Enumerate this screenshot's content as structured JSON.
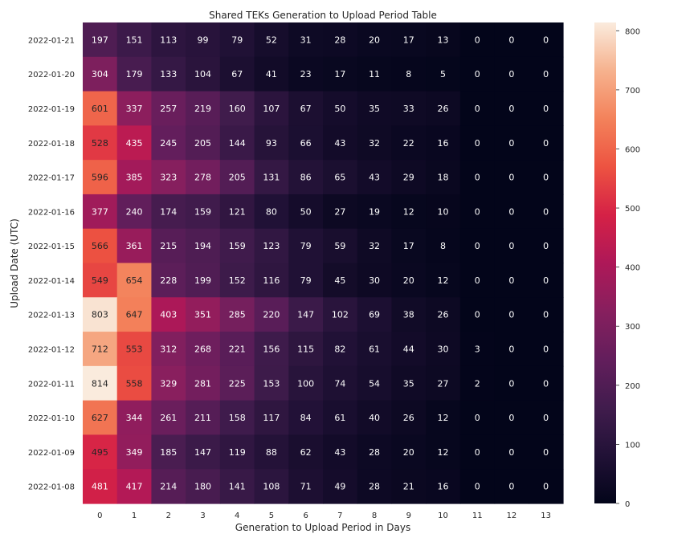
{
  "chart_data": {
    "type": "heatmap",
    "title": "Shared TEKs Generation to Upload Period Table",
    "xlabel": "Generation to Upload Period in Days",
    "ylabel": "Upload Date (UTC)",
    "x": [
      "0",
      "1",
      "2",
      "3",
      "4",
      "5",
      "6",
      "7",
      "8",
      "9",
      "10",
      "11",
      "12",
      "13"
    ],
    "y": [
      "2022-01-21",
      "2022-01-20",
      "2022-01-19",
      "2022-01-18",
      "2022-01-17",
      "2022-01-16",
      "2022-01-15",
      "2022-01-14",
      "2022-01-13",
      "2022-01-12",
      "2022-01-11",
      "2022-01-10",
      "2022-01-09",
      "2022-01-08"
    ],
    "values": [
      [
        197,
        151,
        113,
        99,
        79,
        52,
        31,
        28,
        20,
        17,
        13,
        0,
        0,
        0
      ],
      [
        304,
        179,
        133,
        104,
        67,
        41,
        23,
        17,
        11,
        8,
        5,
        0,
        0,
        0
      ],
      [
        601,
        337,
        257,
        219,
        160,
        107,
        67,
        50,
        35,
        33,
        26,
        0,
        0,
        0
      ],
      [
        528,
        435,
        245,
        205,
        144,
        93,
        66,
        43,
        32,
        22,
        16,
        0,
        0,
        0
      ],
      [
        596,
        385,
        323,
        278,
        205,
        131,
        86,
        65,
        43,
        29,
        18,
        0,
        0,
        0
      ],
      [
        377,
        240,
        174,
        159,
        121,
        80,
        50,
        27,
        19,
        12,
        10,
        0,
        0,
        0
      ],
      [
        566,
        361,
        215,
        194,
        159,
        123,
        79,
        59,
        32,
        17,
        8,
        0,
        0,
        0
      ],
      [
        549,
        654,
        228,
        199,
        152,
        116,
        79,
        45,
        30,
        20,
        12,
        0,
        0,
        0
      ],
      [
        803,
        647,
        403,
        351,
        285,
        220,
        147,
        102,
        69,
        38,
        26,
        0,
        0,
        0
      ],
      [
        712,
        553,
        312,
        268,
        221,
        156,
        115,
        82,
        61,
        44,
        30,
        3,
        0,
        0
      ],
      [
        814,
        558,
        329,
        281,
        225,
        153,
        100,
        74,
        54,
        35,
        27,
        2,
        0,
        0
      ],
      [
        627,
        344,
        261,
        211,
        158,
        117,
        84,
        61,
        40,
        26,
        12,
        0,
        0,
        0
      ],
      [
        495,
        349,
        185,
        147,
        119,
        88,
        62,
        43,
        28,
        20,
        12,
        0,
        0,
        0
      ],
      [
        481,
        417,
        214,
        180,
        141,
        108,
        71,
        49,
        28,
        21,
        16,
        0,
        0,
        0
      ]
    ],
    "colorbar": {
      "vmin": 0,
      "vmax": 814,
      "ticks": [
        0,
        100,
        200,
        300,
        400,
        500,
        600,
        700,
        800
      ]
    },
    "colormap": "rocket",
    "annotations": true
  }
}
